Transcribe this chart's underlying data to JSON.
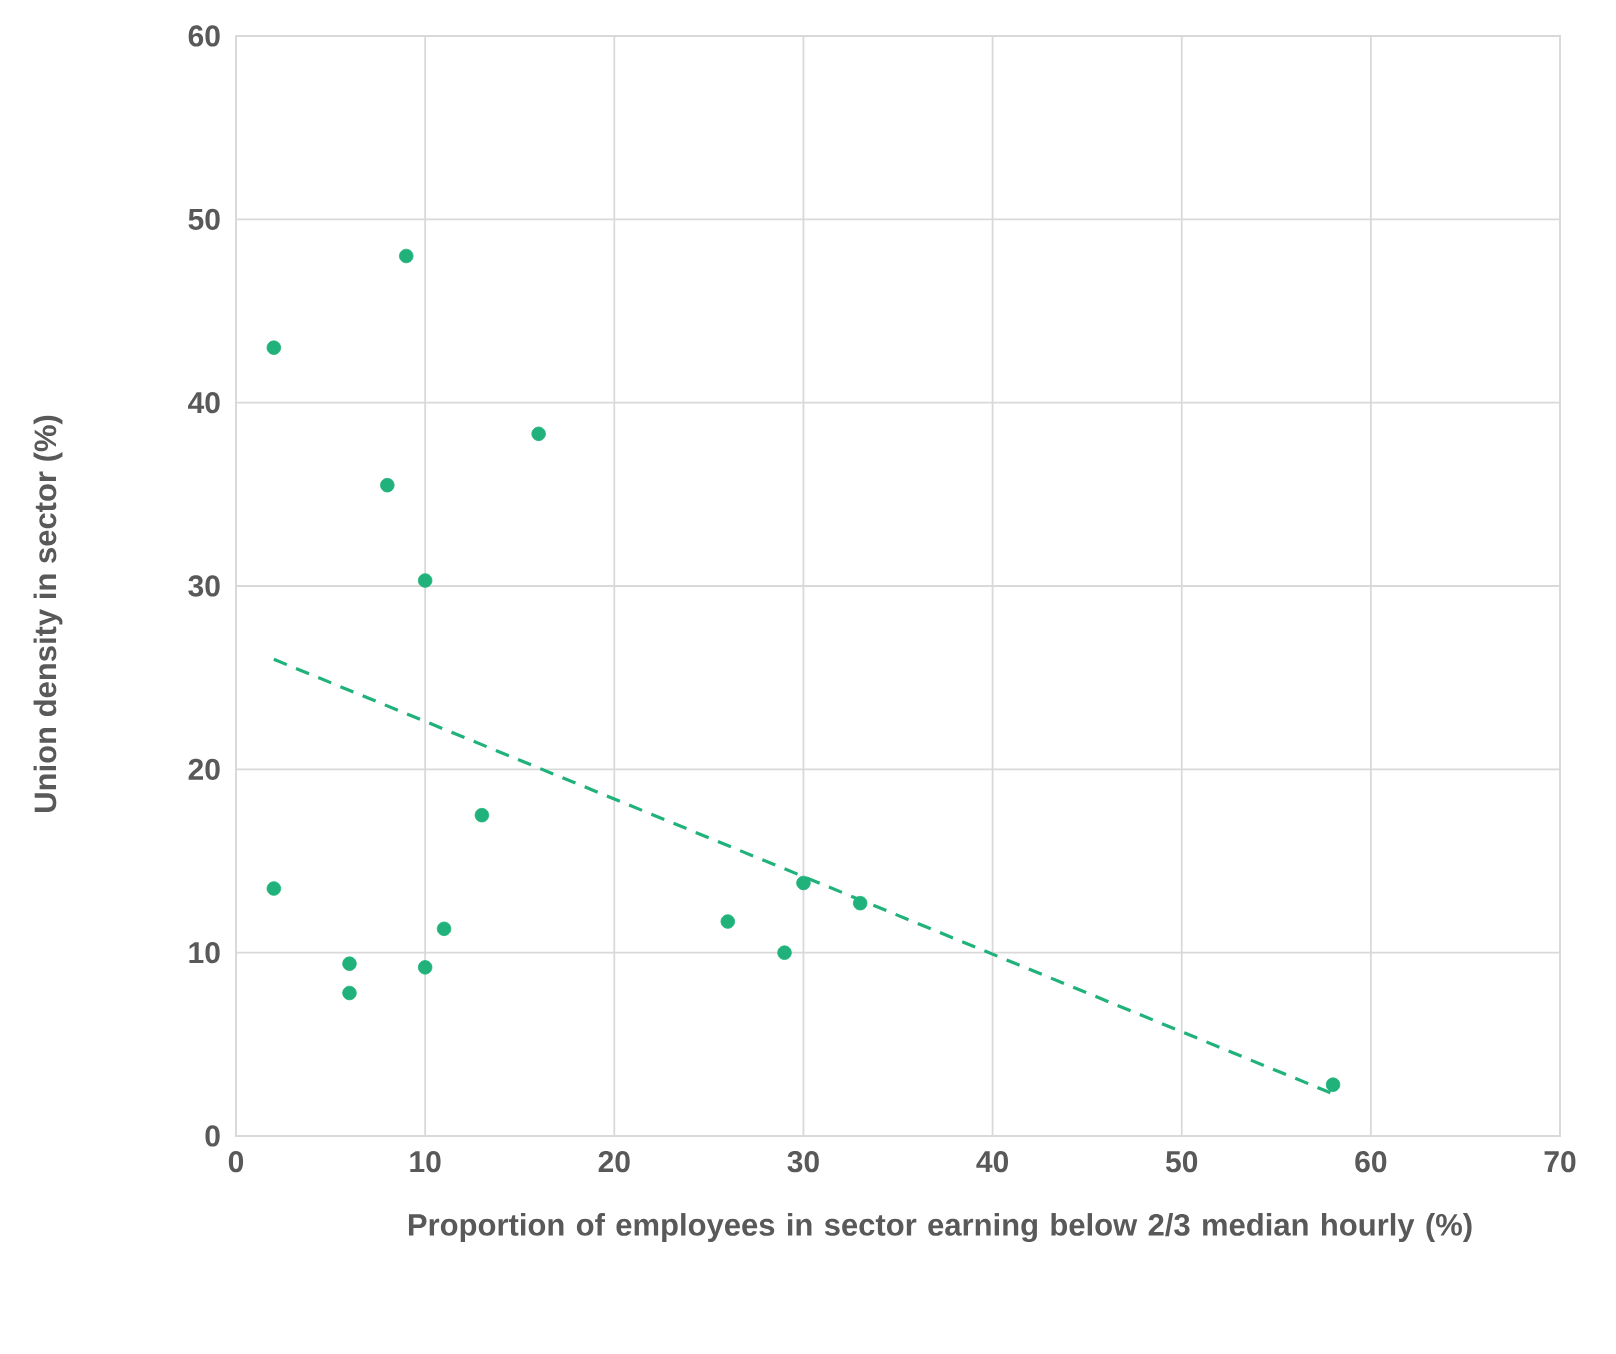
{
  "chart_data": {
    "type": "scatter",
    "xlabel": "Proportion of employees in sector earning below 2/3 median hourly (%)",
    "ylabel": "Union density in sector (%)",
    "xlim": [
      0,
      70
    ],
    "ylim": [
      0,
      60
    ],
    "xticks": [
      0,
      10,
      20,
      30,
      40,
      50,
      60,
      70
    ],
    "yticks": [
      0,
      10,
      20,
      30,
      40,
      50,
      60
    ],
    "grid": true,
    "marker": "circle",
    "series": [
      {
        "color": "#20b27a",
        "x": [
          2,
          9,
          8,
          16,
          10,
          13,
          2,
          6,
          6,
          10,
          11,
          26,
          29,
          30,
          33,
          58
        ],
        "values": [
          43,
          48,
          35.5,
          38.3,
          30.3,
          17.5,
          13.5,
          9.4,
          7.8,
          9.2,
          11.3,
          11.7,
          10,
          13.8,
          12.7,
          2.8
        ]
      },
      {
        "type": "line",
        "color": "#20b27a",
        "marker": "none",
        "line_style": "dashed",
        "x": [
          2,
          58
        ],
        "values": [
          26,
          2.3
        ]
      }
    ]
  }
}
